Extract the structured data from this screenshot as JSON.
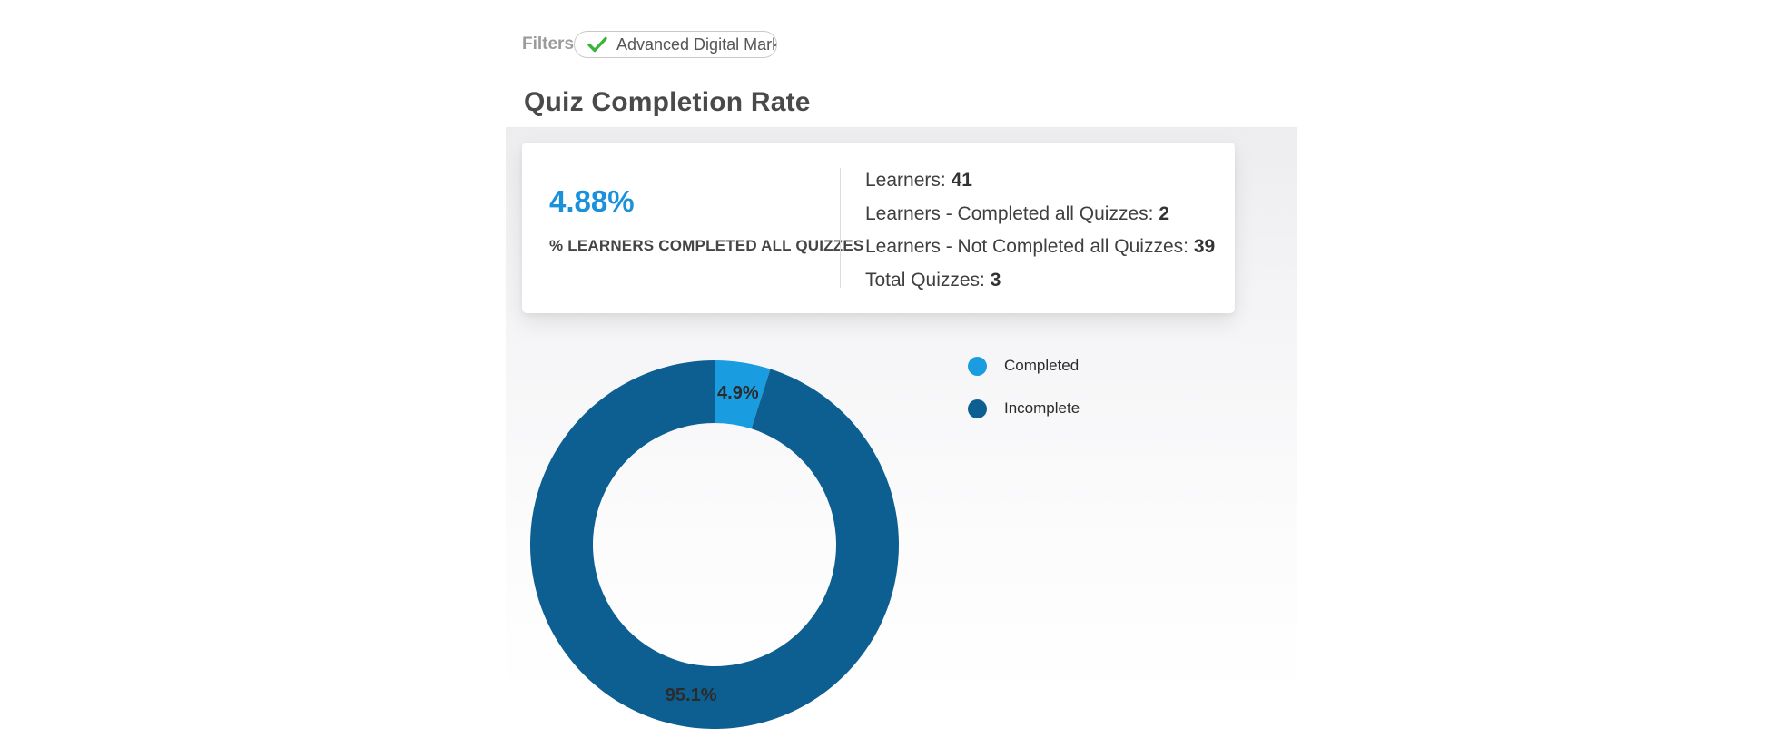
{
  "filters": {
    "label": "Filters",
    "chip": {
      "text": "Advanced Digital Mark",
      "check_color": "#3bb33b"
    }
  },
  "page": {
    "title": "Quiz Completion Rate"
  },
  "summary_card": {
    "metric_value": "4.88%",
    "metric_label": "% LEARNERS COMPLETED ALL QUIZZES",
    "metric_color": "#1a91da",
    "stats": [
      {
        "label": "Learners:",
        "value": "41"
      },
      {
        "label": "Learners - Completed all Quizzes:",
        "value": "2"
      },
      {
        "label": "Learners - Not Completed all Quizzes:",
        "value": "39"
      },
      {
        "label": "Total Quizzes:",
        "value": "3"
      }
    ]
  },
  "chart_data": {
    "type": "pie",
    "variant": "donut",
    "title": "Quiz Completion Rate",
    "categories": [
      "Completed",
      "Incomplete"
    ],
    "values": [
      4.9,
      95.1
    ],
    "slice_labels": [
      "4.9%",
      "95.1%"
    ],
    "colors": [
      "#1a9ce0",
      "#0e5f91"
    ],
    "start_angle_deg": 0,
    "inner_radius_ratio": 0.66,
    "legend_position": "right",
    "label_color": "#2b2b2b"
  }
}
